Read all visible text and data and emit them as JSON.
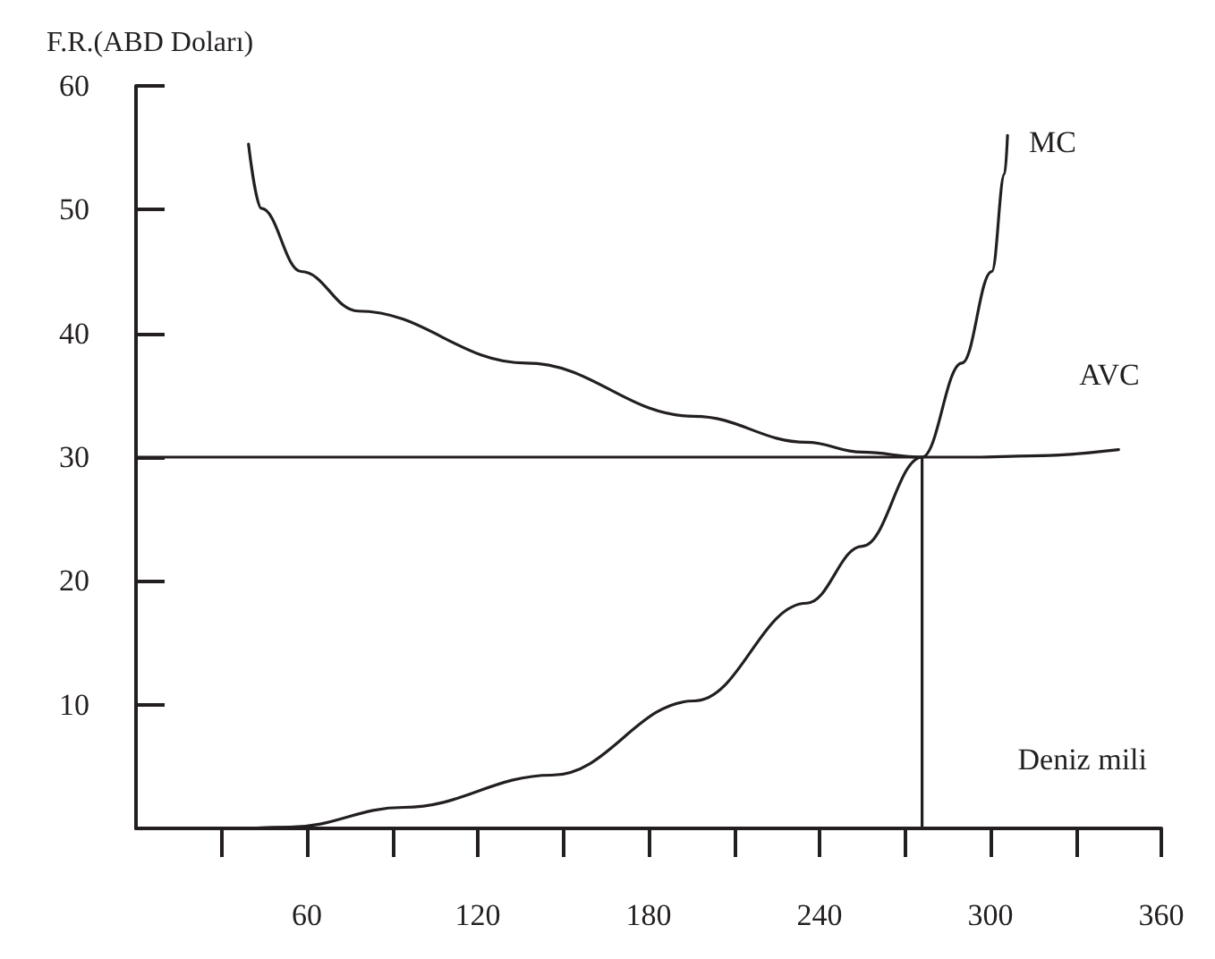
{
  "chart_data": {
    "type": "line",
    "ylabel": "F.R.(ABD Doları)",
    "xlabel": "Deniz mili",
    "xlim": [
      0,
      360
    ],
    "ylim": [
      0,
      60
    ],
    "xticks": [
      {
        "value": 30,
        "label": null
      },
      60,
      {
        "value": 90,
        "label": null
      },
      120,
      {
        "value": 150,
        "label": null
      },
      180,
      {
        "value": 210,
        "label": null
      },
      240,
      {
        "value": 270,
        "label": null
      },
      300,
      {
        "value": 330,
        "label": null
      },
      360
    ],
    "yticks": [
      10,
      20,
      30,
      40,
      50,
      60
    ],
    "grid": false,
    "legend": false,
    "marker": "none",
    "line_style": "solid",
    "series": [
      {
        "name": "MC",
        "color": "#231f20",
        "x": [
          39.5,
          54,
          94,
          146,
          196,
          235.5,
          255,
          276,
          290,
          300.5,
          305,
          306
        ],
        "values": [
          0,
          0.1,
          1.7,
          4.3,
          10.3,
          18.2,
          22.8,
          30,
          37.6,
          45,
          52.9,
          56
        ]
      },
      {
        "name": "AVC",
        "color": "#231f20",
        "x": [
          39.5,
          44,
          58,
          78,
          137,
          196,
          235.5,
          255,
          276,
          294.5,
          314,
          345
        ],
        "values": [
          55.3,
          50.1,
          45,
          41.8,
          37.6,
          33.3,
          31.2,
          30.4,
          30,
          30,
          30.1,
          30.6
        ]
      },
      {
        "color": "#231f20",
        "x": [
          0,
          276,
          276
        ],
        "values": [
          30,
          30,
          0
        ]
      }
    ]
  }
}
